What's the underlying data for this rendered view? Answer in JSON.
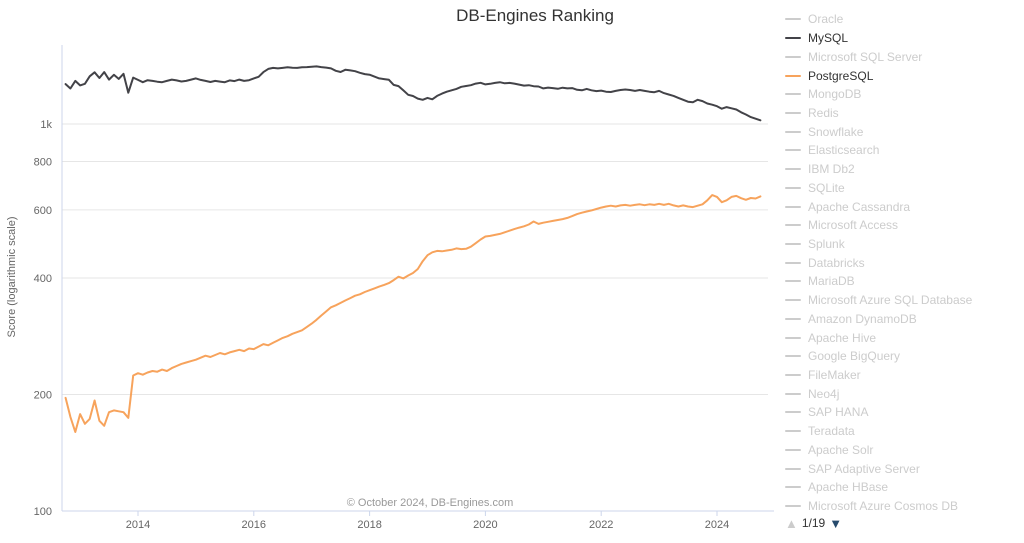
{
  "title": "DB-Engines Ranking",
  "credits": "© October 2024, DB-Engines.com",
  "colors": {
    "grid_line": "#e6e6e6",
    "axis_line": "#ccd6eb",
    "axis_text": "#666666",
    "title_text": "#333333",
    "credits_text": "#999999",
    "muted_legend": "#cccccc"
  },
  "legend": {
    "items": [
      {
        "label": "Oracle",
        "marker_color": "#cccccc",
        "label_color": "#cccccc",
        "active": false
      },
      {
        "label": "MySQL",
        "marker_color": "#434348",
        "label_color": "#333333",
        "active": true
      },
      {
        "label": "Microsoft SQL Server",
        "marker_color": "#cccccc",
        "label_color": "#cccccc",
        "active": false
      },
      {
        "label": "PostgreSQL",
        "marker_color": "#f7a35c",
        "label_color": "#333333",
        "active": true
      },
      {
        "label": "MongoDB",
        "marker_color": "#cccccc",
        "label_color": "#cccccc",
        "active": false
      },
      {
        "label": "Redis",
        "marker_color": "#cccccc",
        "label_color": "#cccccc",
        "active": false
      },
      {
        "label": "Snowflake",
        "marker_color": "#cccccc",
        "label_color": "#cccccc",
        "active": false
      },
      {
        "label": "Elasticsearch",
        "marker_color": "#cccccc",
        "label_color": "#cccccc",
        "active": false
      },
      {
        "label": "IBM Db2",
        "marker_color": "#cccccc",
        "label_color": "#cccccc",
        "active": false
      },
      {
        "label": "SQLite",
        "marker_color": "#cccccc",
        "label_color": "#cccccc",
        "active": false
      },
      {
        "label": "Apache Cassandra",
        "marker_color": "#cccccc",
        "label_color": "#cccccc",
        "active": false
      },
      {
        "label": "Microsoft Access",
        "marker_color": "#cccccc",
        "label_color": "#cccccc",
        "active": false
      },
      {
        "label": "Splunk",
        "marker_color": "#cccccc",
        "label_color": "#cccccc",
        "active": false
      },
      {
        "label": "Databricks",
        "marker_color": "#cccccc",
        "label_color": "#cccccc",
        "active": false
      },
      {
        "label": "MariaDB",
        "marker_color": "#cccccc",
        "label_color": "#cccccc",
        "active": false
      },
      {
        "label": "Microsoft Azure SQL Database",
        "marker_color": "#cccccc",
        "label_color": "#cccccc",
        "active": false
      },
      {
        "label": "Amazon DynamoDB",
        "marker_color": "#cccccc",
        "label_color": "#cccccc",
        "active": false
      },
      {
        "label": "Apache Hive",
        "marker_color": "#cccccc",
        "label_color": "#cccccc",
        "active": false
      },
      {
        "label": "Google BigQuery",
        "marker_color": "#cccccc",
        "label_color": "#cccccc",
        "active": false
      },
      {
        "label": "FileMaker",
        "marker_color": "#cccccc",
        "label_color": "#cccccc",
        "active": false
      },
      {
        "label": "Neo4j",
        "marker_color": "#cccccc",
        "label_color": "#cccccc",
        "active": false
      },
      {
        "label": "SAP HANA",
        "marker_color": "#cccccc",
        "label_color": "#cccccc",
        "active": false
      },
      {
        "label": "Teradata",
        "marker_color": "#cccccc",
        "label_color": "#cccccc",
        "active": false
      },
      {
        "label": "Apache Solr",
        "marker_color": "#cccccc",
        "label_color": "#cccccc",
        "active": false
      },
      {
        "label": "SAP Adaptive Server",
        "marker_color": "#cccccc",
        "label_color": "#cccccc",
        "active": false
      },
      {
        "label": "Apache HBase",
        "marker_color": "#cccccc",
        "label_color": "#cccccc",
        "active": false
      },
      {
        "label": "Microsoft Azure Cosmos DB",
        "marker_color": "#cccccc",
        "label_color": "#cccccc",
        "active": false
      }
    ],
    "pagination": {
      "label": "1/19",
      "up_arrow": "▲",
      "down_arrow": "▼",
      "up_color": "#cccccc",
      "down_color": "#274b6d"
    }
  },
  "chart_data": {
    "type": "line",
    "title": "DB-Engines Ranking",
    "x_axis": {
      "range": [
        2012.69,
        2024.9
      ],
      "ticks": [
        {
          "value": 2014,
          "label": "2014"
        },
        {
          "value": 2016,
          "label": "2016"
        },
        {
          "value": 2018,
          "label": "2018"
        },
        {
          "value": 2020,
          "label": "2020"
        },
        {
          "value": 2022,
          "label": "2022"
        },
        {
          "value": 2024,
          "label": "2024"
        }
      ]
    },
    "y_axis": {
      "title": "Score (logarithmic scale)",
      "scale": "logarithmic",
      "range": [
        100,
        1600
      ],
      "ticks": [
        {
          "value": 100,
          "label": "100"
        },
        {
          "value": 200,
          "label": "200"
        },
        {
          "value": 400,
          "label": "400"
        },
        {
          "value": 600,
          "label": "600"
        },
        {
          "value": 800,
          "label": "800"
        },
        {
          "value": 1000,
          "label": "1k"
        }
      ]
    },
    "series": [
      {
        "name": "MySQL",
        "color": "#434348",
        "start_year": 2012.75,
        "interval_years": 0.083333,
        "values": [
          1268,
          1235,
          1292,
          1258,
          1270,
          1328,
          1360,
          1315,
          1362,
          1302,
          1340,
          1308,
          1348,
          1205,
          1318,
          1300,
          1282,
          1298,
          1292,
          1286,
          1282,
          1292,
          1302,
          1296,
          1288,
          1292,
          1302,
          1312,
          1300,
          1292,
          1284,
          1292,
          1287,
          1282,
          1296,
          1291,
          1302,
          1292,
          1298,
          1312,
          1324,
          1362,
          1388,
          1396,
          1392,
          1396,
          1401,
          1398,
          1396,
          1401,
          1403,
          1406,
          1409,
          1403,
          1399,
          1392,
          1372,
          1363,
          1381,
          1376,
          1369,
          1356,
          1346,
          1341,
          1326,
          1312,
          1306,
          1301,
          1262,
          1253,
          1221,
          1190,
          1181,
          1163,
          1155,
          1168,
          1158,
          1182,
          1198,
          1212,
          1222,
          1232,
          1248,
          1254,
          1260,
          1272,
          1278,
          1266,
          1270,
          1277,
          1282,
          1274,
          1277,
          1272,
          1264,
          1257,
          1260,
          1252,
          1250,
          1236,
          1242,
          1238,
          1233,
          1241,
          1236,
          1238,
          1226,
          1222,
          1232,
          1222,
          1216,
          1220,
          1212,
          1210,
          1218,
          1224,
          1228,
          1224,
          1218,
          1224,
          1218,
          1212,
          1208,
          1218,
          1202,
          1192,
          1182,
          1168,
          1155,
          1142,
          1138,
          1155,
          1146,
          1130,
          1122,
          1112,
          1095,
          1106,
          1098,
          1090,
          1072,
          1058,
          1042,
          1032,
          1022
        ]
      },
      {
        "name": "PostgreSQL",
        "color": "#f7a35c",
        "start_year": 2012.75,
        "interval_years": 0.083333,
        "values": [
          196,
          175,
          160,
          178,
          168,
          173,
          193,
          171,
          166,
          180,
          182,
          181,
          180,
          174,
          224,
          227,
          225,
          228,
          230,
          229,
          232,
          230,
          234,
          237,
          240,
          242,
          244,
          246,
          249,
          252,
          250,
          253,
          256,
          254,
          257,
          259,
          261,
          259,
          263,
          262,
          266,
          270,
          268,
          272,
          276,
          280,
          283,
          287,
          290,
          293,
          299,
          305,
          312,
          320,
          328,
          336,
          340,
          345,
          350,
          355,
          360,
          363,
          368,
          372,
          376,
          380,
          384,
          388,
          395,
          403,
          399,
          406,
          412,
          422,
          442,
          458,
          466,
          470,
          469,
          471,
          473,
          477,
          475,
          476,
          482,
          492,
          503,
          512,
          514,
          517,
          520,
          525,
          530,
          535,
          540,
          544,
          550,
          560,
          552,
          556,
          559,
          562,
          565,
          568,
          572,
          578,
          585,
          590,
          594,
          598,
          603,
          608,
          612,
          615,
          612,
          616,
          618,
          615,
          618,
          620,
          617,
          620,
          618,
          622,
          618,
          622,
          616,
          612,
          616,
          612,
          610,
          615,
          620,
          635,
          655,
          648,
          628,
          635,
          648,
          652,
          643,
          637,
          644,
          642,
          650
        ]
      }
    ],
    "grid": true,
    "legend_position": "right"
  }
}
